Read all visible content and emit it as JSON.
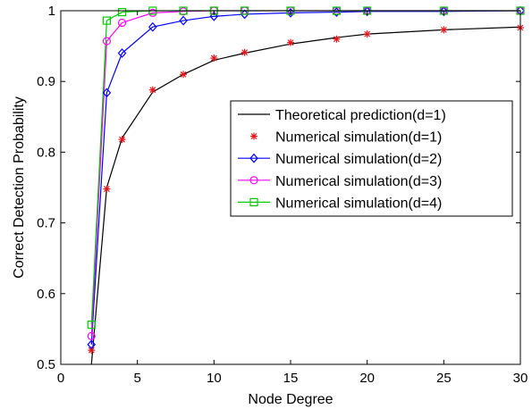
{
  "chart_data": {
    "type": "line",
    "title": "",
    "xlabel": "Node Degree",
    "ylabel": "Correct Detection Probability",
    "xlim": [
      0,
      30
    ],
    "ylim": [
      0.5,
      1
    ],
    "xticks": [
      0,
      5,
      10,
      15,
      20,
      25,
      30
    ],
    "yticks": [
      0.5,
      0.6,
      0.7,
      0.8,
      0.9,
      1
    ],
    "xtick_labels": [
      "0",
      "5",
      "10",
      "15",
      "20",
      "25",
      "30"
    ],
    "ytick_labels": [
      "0.5",
      "0.6",
      "0.7",
      "0.8",
      "0.9",
      "1"
    ],
    "grid": false,
    "legend_position": "center-right",
    "series": [
      {
        "name": "Theoretical prediction(d=1)",
        "color": "#000000",
        "line": true,
        "marker": "none",
        "x": [
          2,
          3,
          4,
          6,
          8,
          10,
          12,
          15,
          18,
          20,
          25,
          30
        ],
        "y": [
          0.5,
          0.75,
          0.82,
          0.885,
          0.91,
          0.93,
          0.94,
          0.953,
          0.962,
          0.967,
          0.973,
          0.977
        ]
      },
      {
        "name": "Numerical simulation(d=1)",
        "color": "#e8141c",
        "line": false,
        "marker": "star",
        "x": [
          2,
          3,
          4,
          6,
          8,
          10,
          12,
          15,
          18,
          20,
          25,
          30
        ],
        "y": [
          0.52,
          0.748,
          0.818,
          0.888,
          0.91,
          0.933,
          0.941,
          0.955,
          0.96,
          0.967,
          0.973,
          0.976
        ]
      },
      {
        "name": "Numerical simulation(d=2)",
        "color": "#0000ff",
        "line": true,
        "marker": "diamond",
        "x": [
          2,
          3,
          4,
          6,
          8,
          10,
          12,
          15,
          18,
          20,
          25,
          30
        ],
        "y": [
          0.528,
          0.884,
          0.94,
          0.977,
          0.986,
          0.992,
          0.995,
          0.997,
          0.998,
          0.999,
          0.999,
          1.0
        ]
      },
      {
        "name": "Numerical simulation(d=3)",
        "color": "#ff00ff",
        "line": true,
        "marker": "circle",
        "x": [
          2,
          3,
          4,
          6,
          8,
          10,
          12,
          15,
          18,
          20,
          25,
          30
        ],
        "y": [
          0.54,
          0.957,
          0.983,
          0.997,
          0.999,
          1.0,
          1.0,
          1.0,
          1.0,
          1.0,
          1.0,
          1.0
        ]
      },
      {
        "name": "Numerical simulation(d=4)",
        "color": "#00cc00",
        "line": true,
        "marker": "square",
        "x": [
          2,
          3,
          4,
          6,
          8,
          10,
          12,
          15,
          18,
          20,
          25,
          30
        ],
        "y": [
          0.556,
          0.986,
          0.998,
          1.0,
          1.0,
          1.0,
          1.0,
          1.0,
          1.0,
          1.0,
          1.0,
          1.0
        ]
      }
    ]
  }
}
